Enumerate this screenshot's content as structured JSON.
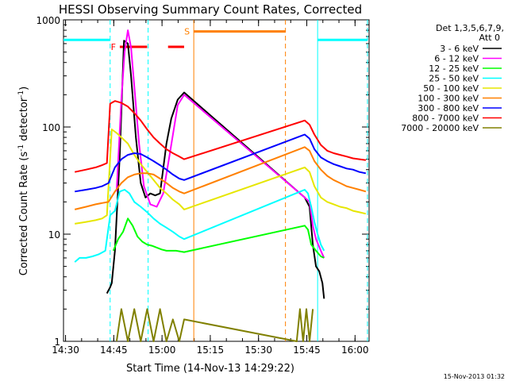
{
  "chart_data": {
    "type": "line",
    "title": "HESSI Observing Summary Count Rates, Corrected",
    "xlabel": "Start Time (14-Nov-13 14:29:22)",
    "ylabel": "Corrected Count Rate (s",
    "ylabel_sup1": "-1",
    "ylabel_mid": " detector",
    "ylabel_sup2": "-1",
    "ylabel_end": ")",
    "x_unit": "minutes since 14:29:22",
    "xlim": [
      0,
      95
    ],
    "ylim": [
      1,
      1000
    ],
    "yscale": "log",
    "x_ticks": [
      {
        "x": 0.63,
        "label": "14:30"
      },
      {
        "x": 15.63,
        "label": "14:45"
      },
      {
        "x": 30.63,
        "label": "15:00"
      },
      {
        "x": 45.63,
        "label": "15:15"
      },
      {
        "x": 60.63,
        "label": "15:30"
      },
      {
        "x": 75.63,
        "label": "15:45"
      },
      {
        "x": 90.63,
        "label": "16:00"
      }
    ],
    "y_ticks": [
      {
        "y": 1,
        "label": "1"
      },
      {
        "y": 10,
        "label": "10"
      },
      {
        "y": 100,
        "label": "100"
      },
      {
        "y": 1000,
        "label": "1000"
      }
    ],
    "legend_header_1": "Det 1,3,5,6,7,9,",
    "legend_header_2": "Att 0",
    "legend_position": "right",
    "series": [
      {
        "name": "3 - 6 keV",
        "color": "#000000",
        "x": [
          13.5,
          14.5,
          15.0,
          16.0,
          17.5,
          18.8,
          20.0,
          21.0,
          22.5,
          24.0,
          25.5,
          27.0,
          28.5,
          30.0,
          32.0,
          33.5,
          35.5,
          37.5,
          75.0,
          76.5,
          77.5,
          78.5,
          79.5,
          80.5,
          81.0
        ],
        "y": [
          2.8,
          3.2,
          3.5,
          7,
          55,
          640,
          600,
          300,
          80,
          30,
          22,
          24,
          23,
          24,
          70,
          120,
          180,
          210,
          22,
          18,
          8,
          5,
          4.5,
          3.5,
          2.5
        ]
      },
      {
        "name": "6 - 12 keV",
        "color": "#ff00ff",
        "x": [
          16.5,
          18.0,
          19.0,
          20.0,
          21.0,
          22.0,
          23.5,
          25.0,
          27.0,
          29.0,
          31.0,
          33.0,
          35.5,
          37.5,
          75.0,
          76.5,
          77.5,
          78.5,
          80.0,
          81.0
        ],
        "y": [
          25,
          180,
          500,
          800,
          550,
          240,
          70,
          28,
          19,
          18,
          24,
          55,
          160,
          200,
          22,
          20,
          12,
          9,
          7,
          6
        ]
      },
      {
        "name": "12 - 25 keV",
        "color": "#00ff00",
        "x": [
          15.5,
          17.0,
          18.5,
          20.0,
          21.5,
          23.0,
          24.5,
          26.0,
          27.5,
          29.0,
          30.5,
          32.0,
          33.5,
          35.0,
          37.5,
          75.0,
          76.0,
          77.0,
          78.5,
          80.0,
          81.0
        ],
        "y": [
          7,
          9,
          10.5,
          14,
          12,
          9.5,
          8.5,
          8,
          7.8,
          7.5,
          7.2,
          7,
          7,
          7,
          6.8,
          12,
          11,
          8,
          7,
          6.2,
          6
        ]
      },
      {
        "name": "25 - 50 keV",
        "color": "#00ffff",
        "x": [
          3.5,
          5.0,
          7.0,
          9.0,
          11.0,
          13.0,
          14.5,
          16.0,
          17.5,
          19.0,
          20.5,
          22.0,
          24.0,
          26.0,
          28.0,
          30.0,
          32.0,
          34.0,
          36.0,
          37.5,
          75.0,
          76.0,
          77.0,
          78.0,
          79.0,
          80.0,
          81.0
        ],
        "y": [
          5.5,
          6,
          6,
          6.2,
          6.5,
          7,
          15,
          16.5,
          25,
          26,
          24,
          20,
          18,
          16,
          14,
          12.5,
          11.5,
          10.5,
          9.5,
          9,
          26,
          24,
          18,
          13,
          10,
          8,
          7
        ]
      },
      {
        "name": "50 - 100 keV",
        "color": "#e6e600",
        "x": [
          3.5,
          7.0,
          10.0,
          12.0,
          13.5,
          15.0,
          16.5,
          18.0,
          20.0,
          22.0,
          24.0,
          26.0,
          28.0,
          30.0,
          32.0,
          34.0,
          36.0,
          37.5,
          75.0,
          76.5,
          78.0,
          80.0,
          82.0,
          84.0,
          86.0,
          88.0,
          90.0,
          92.0,
          94.0
        ],
        "y": [
          12.5,
          13,
          13.5,
          14,
          15,
          95,
          88,
          80,
          70,
          55,
          45,
          38,
          32,
          27,
          24,
          21,
          19,
          17,
          42,
          38,
          28,
          22,
          20,
          19,
          18,
          17.5,
          16.5,
          16,
          15.5
        ]
      },
      {
        "name": "100 - 300 keV",
        "color": "#ff8000",
        "x": [
          3.5,
          7.0,
          10.0,
          12.0,
          14.0,
          16.0,
          18.0,
          20.0,
          22.0,
          24.0,
          26.0,
          28.0,
          30.0,
          32.0,
          34.0,
          36.0,
          37.5,
          75.0,
          76.5,
          78.0,
          80.0,
          82.0,
          84.0,
          86.0,
          88.0,
          90.0,
          92.0,
          94.0
        ],
        "y": [
          17,
          18,
          19,
          19.5,
          20,
          25,
          30,
          34,
          36,
          37,
          37,
          36,
          33,
          30,
          27,
          25,
          24,
          65,
          60,
          48,
          40,
          35,
          32,
          30,
          28,
          27,
          26,
          25
        ]
      },
      {
        "name": "300 - 800 keV",
        "color": "#0000ff",
        "x": [
          3.5,
          7.0,
          10.0,
          12.0,
          14.0,
          16.0,
          18.0,
          20.0,
          22.0,
          24.0,
          26.0,
          28.0,
          30.0,
          32.0,
          34.0,
          36.0,
          37.5,
          75.0,
          76.5,
          78.0,
          80.0,
          82.0,
          84.0,
          86.0,
          88.0,
          90.0,
          92.0,
          94.0
        ],
        "y": [
          25,
          26,
          27,
          28,
          30,
          42,
          50,
          55,
          57,
          56,
          52,
          48,
          44,
          40,
          36,
          33,
          32,
          85,
          78,
          62,
          52,
          48,
          45,
          43,
          41,
          40,
          38,
          37
        ]
      },
      {
        "name": "800 - 7000 keV",
        "color": "#ff0000",
        "x": [
          3.5,
          7.0,
          10.0,
          12.0,
          13.5,
          14.5,
          16.0,
          18.0,
          20.0,
          22.0,
          24.0,
          26.0,
          28.0,
          30.0,
          32.0,
          34.0,
          36.0,
          37.5,
          75.0,
          76.5,
          78.0,
          80.0,
          82.0,
          84.0,
          86.0,
          88.0,
          90.0,
          92.0,
          94.0
        ],
        "y": [
          38,
          40,
          42,
          44,
          46,
          165,
          175,
          168,
          155,
          135,
          115,
          95,
          80,
          70,
          62,
          57,
          53,
          50,
          115,
          105,
          85,
          68,
          60,
          57,
          55,
          53,
          51,
          50,
          49
        ]
      },
      {
        "name": "7000 - 20000 keV",
        "color": "#808000",
        "x": [
          16.5,
          18.0,
          20.0,
          22.0,
          24.0,
          26.0,
          28.0,
          30.0,
          32.0,
          34.0,
          36.0,
          37.5,
          72.5,
          73.5,
          74.5,
          75.5,
          76.5,
          77.5
        ],
        "y": [
          1,
          2,
          1,
          2,
          1,
          2,
          1,
          2,
          1,
          1.6,
          1,
          1.6,
          1,
          2,
          1,
          2,
          1,
          2
        ]
      }
    ],
    "overlays": [
      {
        "kind": "attenuator",
        "color": "#00ffff",
        "x": [
          0,
          14.5
        ],
        "y": 650
      },
      {
        "kind": "attenuator",
        "color": "#00ffff",
        "x": [
          79.0,
          94.5
        ],
        "y": 650
      },
      {
        "kind": "flare",
        "label": "F",
        "color": "#ff0000",
        "x": [
          17.5,
          26.0
        ],
        "y": 560
      },
      {
        "kind": "flare",
        "label": "",
        "color": "#ff0000",
        "x": [
          32.5,
          37.5
        ],
        "y": 560
      },
      {
        "kind": "saa",
        "label": "S",
        "color": "#ff8000",
        "x": [
          40.5,
          69.0
        ],
        "y": 780
      }
    ],
    "vlines": [
      {
        "x": 14.5,
        "color": "#00ffff",
        "dashed": true
      },
      {
        "x": 26.3,
        "color": "#00ffff",
        "dashed": true
      },
      {
        "x": 40.5,
        "color": "#ff8000",
        "dashed": false
      },
      {
        "x": 69.0,
        "color": "#ff8000",
        "dashed": true
      },
      {
        "x": 79.0,
        "color": "#00ffff",
        "dashed": false
      },
      {
        "x": 94.5,
        "color": "#00ffff",
        "dashed": true
      }
    ]
  },
  "footer_stamp": "15-Nov-2013 01:32"
}
